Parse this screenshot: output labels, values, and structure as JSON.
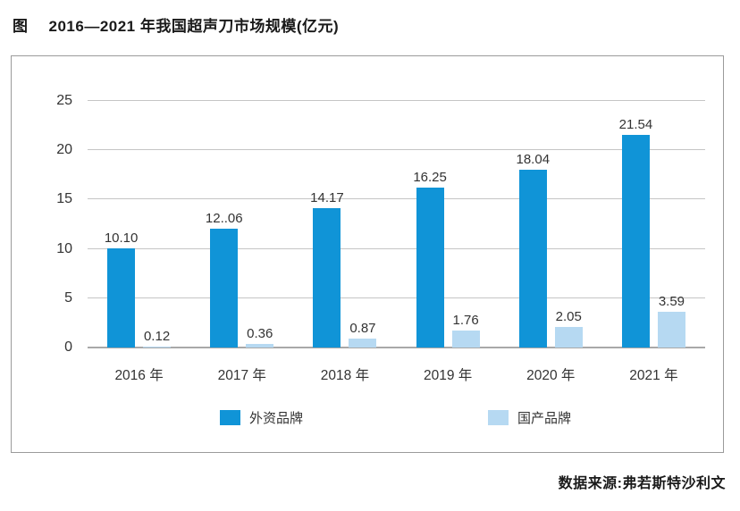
{
  "title": {
    "prefix": "图",
    "text": "2016—2021 年我国超声刀市场规模(亿元)"
  },
  "source": "数据来源:弗若斯特沙利文",
  "colors": {
    "foreign_brand": "#1094d7",
    "domestic_brand": "#b6d9f2",
    "gridline": "#c5c5c5",
    "axis_line": "#a8a8a8",
    "frame_border": "#9b9b9b",
    "text": "#333333"
  },
  "chart_data": {
    "type": "bar",
    "title": "2016—2021 年我国超声刀市场规模(亿元)",
    "xlabel": "",
    "ylabel": "",
    "categories": [
      "2016 年",
      "2017 年",
      "2018 年",
      "2019 年",
      "2020 年",
      "2021 年"
    ],
    "series": [
      {
        "key": "foreign",
        "name": "外资品牌",
        "color": "#1094d7",
        "values": [
          10.1,
          12.06,
          14.17,
          16.25,
          18.04,
          21.54
        ],
        "labels": [
          "10.10",
          "12..06",
          "14.17",
          "16.25",
          "18.04",
          "21.54"
        ]
      },
      {
        "key": "domestic",
        "name": "国产品牌",
        "color": "#b6d9f2",
        "values": [
          0.12,
          0.36,
          0.87,
          1.76,
          2.05,
          3.59
        ],
        "labels": [
          "0.12",
          "0.36",
          "0.87",
          "1.76",
          "2.05",
          "3.59"
        ]
      }
    ],
    "ylim": [
      0,
      25
    ],
    "yticks": [
      0,
      5,
      10,
      15,
      20,
      25
    ],
    "grid": true,
    "legend_position": "bottom"
  }
}
